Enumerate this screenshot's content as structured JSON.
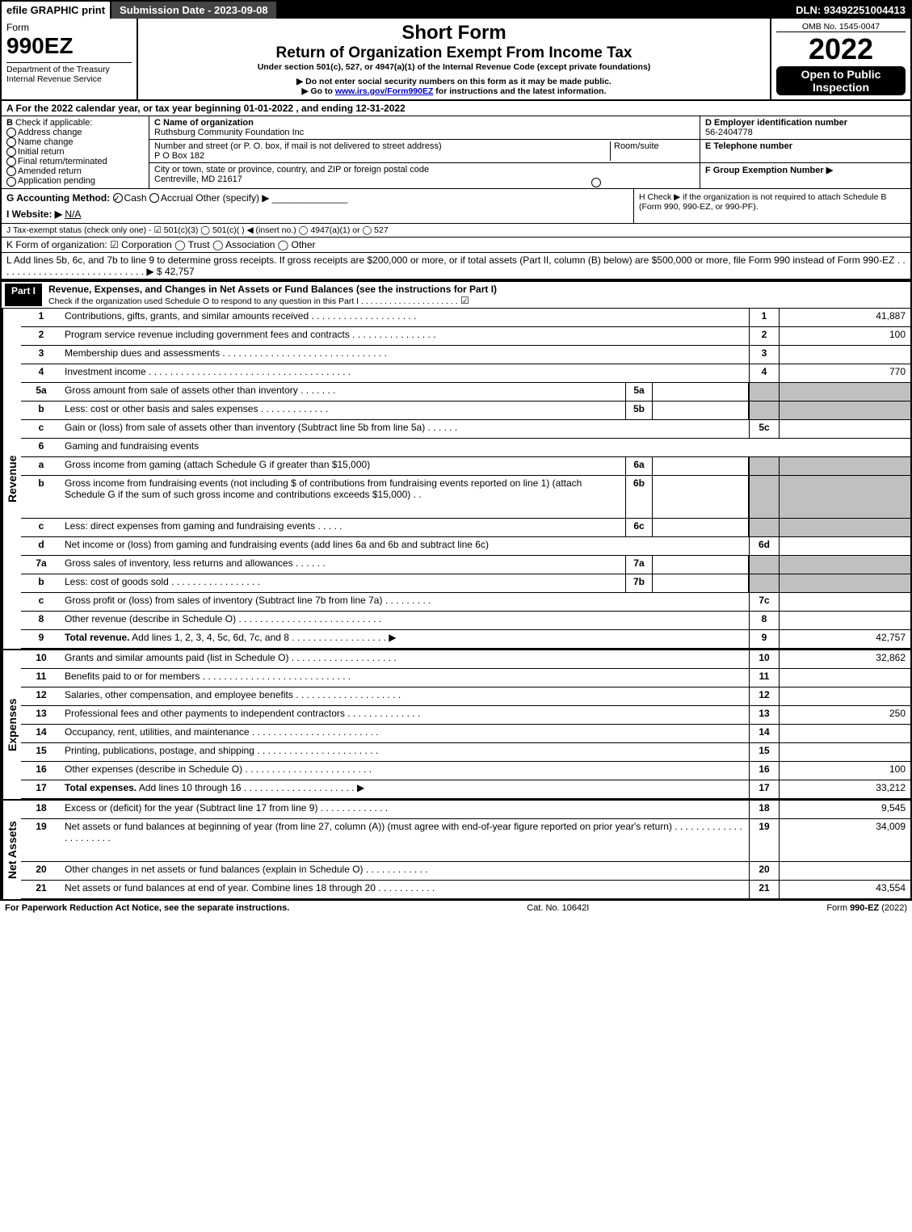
{
  "topbar": {
    "efile": "efile GRAPHIC print",
    "submission": "Submission Date - 2023-09-08",
    "dln": "DLN: 93492251004413"
  },
  "header": {
    "form_word": "Form",
    "form_no": "990EZ",
    "dept1": "Department of the Treasury",
    "dept2": "Internal Revenue Service",
    "title1": "Short Form",
    "title2": "Return of Organization Exempt From Income Tax",
    "subtitle": "Under section 501(c), 527, or 4947(a)(1) of the Internal Revenue Code (except private foundations)",
    "note1": "▶ Do not enter social security numbers on this form as it may be made public.",
    "note2_pre": "▶ Go to ",
    "note2_link": "www.irs.gov/Form990EZ",
    "note2_post": " for instructions and the latest information.",
    "omb": "OMB No. 1545-0047",
    "year": "2022",
    "open": "Open to Public Inspection"
  },
  "A": {
    "text": "A  For the 2022 calendar year, or tax year beginning 01-01-2022 , and ending 12-31-2022"
  },
  "B": {
    "label": "B",
    "check_label": "Check if applicable:",
    "opts": [
      "Address change",
      "Name change",
      "Initial return",
      "Final return/terminated",
      "Amended return",
      "Application pending"
    ]
  },
  "C": {
    "name_lbl": "C Name of organization",
    "name": "Ruthsburg Community Foundation Inc",
    "addr_lbl": "Number and street (or P. O. box, if mail is not delivered to street address)",
    "room_lbl": "Room/suite",
    "addr": "P O Box 182",
    "city_lbl": "City or town, state or province, country, and ZIP or foreign postal code",
    "city": "Centreville, MD  21617"
  },
  "D": {
    "lbl": "D Employer identification number",
    "val": "56-2404778"
  },
  "E": {
    "lbl": "E Telephone number",
    "val": ""
  },
  "F": {
    "lbl": "F Group Exemption Number   ▶",
    "val": ""
  },
  "G": {
    "lbl": "G Accounting Method:",
    "cash": "Cash",
    "accrual": "Accrual",
    "other": "Other (specify) ▶"
  },
  "H": {
    "text": "H  Check ▶        if the organization is not required to attach Schedule B (Form 990, 990-EZ, or 990-PF)."
  },
  "I": {
    "lbl": "I Website: ▶",
    "val": "N/A"
  },
  "J": {
    "text": "J Tax-exempt status (check only one) - ☑ 501(c)(3)  ◯ 501(c)(  ) ◀ (insert no.)  ◯ 4947(a)(1) or  ◯ 527"
  },
  "K": {
    "text": "K Form of organization:   ☑ Corporation   ◯ Trust   ◯ Association   ◯ Other"
  },
  "L": {
    "text": "L Add lines 5b, 6c, and 7b to line 9 to determine gross receipts. If gross receipts are $200,000 or more, or if total assets (Part II, column (B) below) are $500,000 or more, file Form 990 instead of Form 990-EZ  . . . . . . . . . . . . . . . . . . . . . . . . . . . .  ▶ $",
    "amt": "42,757"
  },
  "part1": {
    "hdr": "Part I",
    "title": "Revenue, Expenses, and Changes in Net Assets or Fund Balances (see the instructions for Part I)",
    "check": "Check if the organization used Schedule O to respond to any question in this Part I  . . . . . . . . . . . . . . . . . . . . .",
    "checked": "☑"
  },
  "sections": {
    "revenue": "Revenue",
    "expenses": "Expenses",
    "netassets": "Net Assets"
  },
  "lines": [
    {
      "n": "1",
      "d": "Contributions, gifts, grants, and similar amounts received  . . . . . . . . . . . . . . . . . . . .",
      "r": "1",
      "a": "41,887"
    },
    {
      "n": "2",
      "d": "Program service revenue including government fees and contracts  . . . . . . . . . . . . . . . .",
      "r": "2",
      "a": "100"
    },
    {
      "n": "3",
      "d": "Membership dues and assessments  . . . . . . . . . . . . . . . . . . . . . . . . . . . . . . .",
      "r": "3",
      "a": ""
    },
    {
      "n": "4",
      "d": "Investment income  . . . . . . . . . . . . . . . . . . . . . . . . . . . . . . . . . . . . . .",
      "r": "4",
      "a": "770"
    },
    {
      "n": "5a",
      "d": "Gross amount from sale of assets other than inventory  . . . . . . .",
      "sn": "5a",
      "sa": "",
      "r": "",
      "a": "",
      "gray": true
    },
    {
      "n": "b",
      "d": "Less: cost or other basis and sales expenses  . . . . . . . . . . . . .",
      "sn": "5b",
      "sa": "",
      "r": "",
      "a": "",
      "gray": true
    },
    {
      "n": "c",
      "d": "Gain or (loss) from sale of assets other than inventory (Subtract line 5b from line 5a)  . . . . . .",
      "r": "5c",
      "a": ""
    },
    {
      "n": "6",
      "d": "Gaming and fundraising events",
      "r": "",
      "a": "",
      "gray": true,
      "nor": true
    },
    {
      "n": "a",
      "d": "Gross income from gaming (attach Schedule G if greater than $15,000)",
      "sn": "6a",
      "sa": "",
      "r": "",
      "a": "",
      "gray": true
    },
    {
      "n": "b",
      "d": "Gross income from fundraising events (not including $                          of contributions from fundraising events reported on line 1) (attach Schedule G if the sum of such gross income and contributions exceeds $15,000)   .  .",
      "sn": "6b",
      "sa": "",
      "r": "",
      "a": "",
      "gray": true,
      "tall": true
    },
    {
      "n": "c",
      "d": "Less: direct expenses from gaming and fundraising events   . . . . .",
      "sn": "6c",
      "sa": "",
      "r": "",
      "a": "",
      "gray": true
    },
    {
      "n": "d",
      "d": "Net income or (loss) from gaming and fundraising events (add lines 6a and 6b and subtract line 6c)",
      "r": "6d",
      "a": ""
    },
    {
      "n": "7a",
      "d": "Gross sales of inventory, less returns and allowances  . . . . . .",
      "sn": "7a",
      "sa": "",
      "r": "",
      "a": "",
      "gray": true
    },
    {
      "n": "b",
      "d": "Less: cost of goods sold          . . . . . . . . . . . . . . . . .",
      "sn": "7b",
      "sa": "",
      "r": "",
      "a": "",
      "gray": true
    },
    {
      "n": "c",
      "d": "Gross profit or (loss) from sales of inventory (Subtract line 7b from line 7a)  . . . . . . . . .",
      "r": "7c",
      "a": ""
    },
    {
      "n": "8",
      "d": "Other revenue (describe in Schedule O)  . . . . . . . . . . . . . . . . . . . . . . . . . . .",
      "r": "8",
      "a": ""
    },
    {
      "n": "9",
      "d": "Total revenue. Add lines 1, 2, 3, 4, 5c, 6d, 7c, and 8   . . . . . . . . . . . . . . . . . .    ▶",
      "r": "9",
      "a": "42,757",
      "bold": true
    }
  ],
  "exp_lines": [
    {
      "n": "10",
      "d": "Grants and similar amounts paid (list in Schedule O)  . . . . . . . . . . . . . . . . . . . .",
      "r": "10",
      "a": "32,862"
    },
    {
      "n": "11",
      "d": "Benefits paid to or for members      . . . . . . . . . . . . . . . . . . . . . . . . . . . .",
      "r": "11",
      "a": ""
    },
    {
      "n": "12",
      "d": "Salaries, other compensation, and employee benefits  . . . . . . . . . . . . . . . . . . . .",
      "r": "12",
      "a": ""
    },
    {
      "n": "13",
      "d": "Professional fees and other payments to independent contractors  . . . . . . . . . . . . . .",
      "r": "13",
      "a": "250"
    },
    {
      "n": "14",
      "d": "Occupancy, rent, utilities, and maintenance  . . . . . . . . . . . . . . . . . . . . . . . .",
      "r": "14",
      "a": ""
    },
    {
      "n": "15",
      "d": "Printing, publications, postage, and shipping  . . . . . . . . . . . . . . . . . . . . . . .",
      "r": "15",
      "a": ""
    },
    {
      "n": "16",
      "d": "Other expenses (describe in Schedule O)     . . . . . . . . . . . . . . . . . . . . . . . .",
      "r": "16",
      "a": "100"
    },
    {
      "n": "17",
      "d": "Total expenses. Add lines 10 through 16      . . . . . . . . . . . . . . . . . . . . .    ▶",
      "r": "17",
      "a": "33,212",
      "bold": true
    }
  ],
  "na_lines": [
    {
      "n": "18",
      "d": "Excess or (deficit) for the year (Subtract line 17 from line 9)        . . . . . . . . . . . . .",
      "r": "18",
      "a": "9,545"
    },
    {
      "n": "19",
      "d": "Net assets or fund balances at beginning of year (from line 27, column (A)) (must agree with end-of-year figure reported on prior year's return)  . . . . . . . . . . . . . . . . . . . . . .",
      "r": "19",
      "a": "34,009",
      "tall": true
    },
    {
      "n": "20",
      "d": "Other changes in net assets or fund balances (explain in Schedule O)  . . . . . . . . . . . .",
      "r": "20",
      "a": ""
    },
    {
      "n": "21",
      "d": "Net assets or fund balances at end of year. Combine lines 18 through 20  . . . . . . . . . . .",
      "r": "21",
      "a": "43,554"
    }
  ],
  "footer": {
    "left": "For Paperwork Reduction Act Notice, see the separate instructions.",
    "mid": "Cat. No. 10642I",
    "right": "Form 990-EZ (2022)"
  },
  "colors": {
    "black": "#000000",
    "gray": "#c0c0c0",
    "link": "#0000cc"
  }
}
